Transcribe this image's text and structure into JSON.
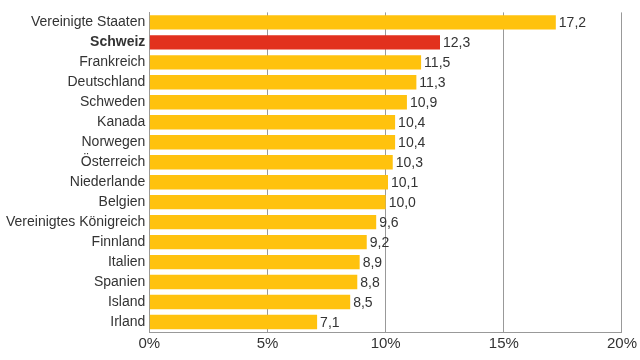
{
  "chart_data": {
    "type": "bar",
    "orientation": "horizontal",
    "categories": [
      "Vereinigte Staaten",
      "Schweiz",
      "Frankreich",
      "Deutschland",
      "Schweden",
      "Kanada",
      "Norwegen",
      "Österreich",
      "Niederlande",
      "Belgien",
      "Vereinigtes Königreich",
      "Finnland",
      "Italien",
      "Spanien",
      "Island",
      "Irland"
    ],
    "values": [
      17.2,
      12.3,
      11.5,
      11.3,
      10.9,
      10.4,
      10.4,
      10.3,
      10.1,
      10.0,
      9.6,
      9.2,
      8.9,
      8.8,
      8.5,
      7.1
    ],
    "value_labels": [
      "17,2",
      "12,3",
      "11,5",
      "11,3",
      "10,9",
      "10,4",
      "10,4",
      "10,3",
      "10,1",
      "10,0",
      "9,6",
      "9,2",
      "8,9",
      "8,8",
      "8,5",
      "7,1"
    ],
    "colors": [
      "#ffc20e",
      "#e2311d",
      "#ffc20e",
      "#ffc20e",
      "#ffc20e",
      "#ffc20e",
      "#ffc20e",
      "#ffc20e",
      "#ffc20e",
      "#ffc20e",
      "#ffc20e",
      "#ffc20e",
      "#ffc20e",
      "#ffc20e",
      "#ffc20e",
      "#ffc20e"
    ],
    "xlim": [
      0,
      20
    ],
    "xticks": [
      {
        "value": 0,
        "label": "0%"
      },
      {
        "value": 5,
        "label": "5%"
      },
      {
        "value": 10,
        "label": "10%"
      },
      {
        "value": 15,
        "label": "15%"
      },
      {
        "value": 20,
        "label": "20%"
      }
    ],
    "grid": true,
    "data_labels": true
  }
}
